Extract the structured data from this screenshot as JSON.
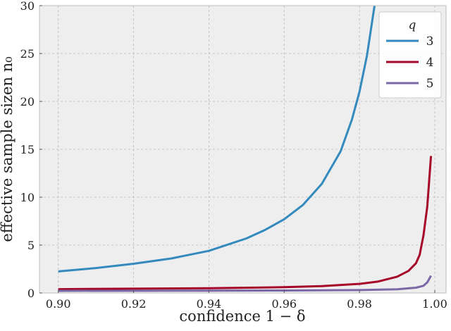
{
  "chart_data": {
    "type": "line",
    "xlabel": "confidence 1 − δ",
    "ylabel": "effective sample sizen n₀",
    "xlim": [
      0.895,
      1.003
    ],
    "ylim": [
      0,
      30
    ],
    "xticks": [
      0.9,
      0.92,
      0.94,
      0.96,
      0.98,
      1.0
    ],
    "xtick_labels": [
      "0.90",
      "0.92",
      "0.94",
      "0.96",
      "0.98",
      "1.00"
    ],
    "yticks": [
      0,
      5,
      10,
      15,
      20,
      25,
      30
    ],
    "ytick_labels": [
      "0",
      "5",
      "10",
      "15",
      "20",
      "25",
      "30"
    ],
    "grid": true,
    "legend": {
      "title": "q",
      "placement": "top-right"
    },
    "series": [
      {
        "name": "3",
        "color": "#348ABD",
        "x": [
          0.9,
          0.91,
          0.92,
          0.93,
          0.94,
          0.95,
          0.955,
          0.96,
          0.965,
          0.97,
          0.975,
          0.978,
          0.98,
          0.982,
          0.984
        ],
        "y": [
          2.25,
          2.6,
          3.05,
          3.6,
          4.4,
          5.7,
          6.6,
          7.7,
          9.2,
          11.4,
          14.8,
          18.1,
          21.0,
          24.8,
          30.0
        ]
      },
      {
        "name": "4",
        "color": "#A60628",
        "x": [
          0.9,
          0.92,
          0.94,
          0.96,
          0.97,
          0.98,
          0.985,
          0.99,
          0.993,
          0.995,
          0.996,
          0.997,
          0.998,
          0.999
        ],
        "y": [
          0.4,
          0.45,
          0.5,
          0.6,
          0.72,
          0.95,
          1.2,
          1.7,
          2.3,
          3.1,
          4.0,
          6.0,
          9.0,
          14.3
        ]
      },
      {
        "name": "5",
        "color": "#7A68A6",
        "x": [
          0.9,
          0.94,
          0.96,
          0.98,
          0.99,
          0.995,
          0.997,
          0.998,
          0.999
        ],
        "y": [
          0.22,
          0.24,
          0.26,
          0.3,
          0.38,
          0.55,
          0.75,
          1.1,
          1.8
        ]
      }
    ]
  }
}
